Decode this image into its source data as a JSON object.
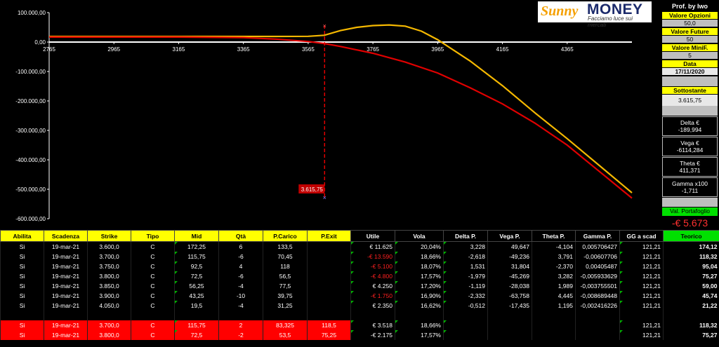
{
  "logo": {
    "brand_left": "Sunny",
    "brand_right": "MONEY",
    "tagline": "Facciamo luce sui mercati"
  },
  "sidebar": {
    "author": "Prof. by Iwo",
    "opzioni_label": "Valore Opzioni",
    "opzioni_value": "50,0",
    "future_label": "Valore Future",
    "future_value": "50",
    "minif_label": "Valore MiniF.",
    "minif_value": "5",
    "data_label": "Data",
    "data_value": "17/11/2020",
    "sottostante_label": "Sottostante",
    "sottostante_value": "3.615,75",
    "delta_label": "Delta €",
    "delta_value": "-189,994",
    "vega_label": "Vega €",
    "vega_value": "-6114,284",
    "theta_label": "Theta €",
    "theta_value": "411,371",
    "gamma_label": "Gamma x100",
    "gamma_value": "-1,711",
    "portafoglio_label": "Val. Portafoglio",
    "portafoglio_value": "-€ 5.673"
  },
  "colors": {
    "expiry_line": "#f5b800",
    "today_line": "#e00000",
    "marker": "#e00000",
    "zero_line": "#ffffff"
  },
  "chart_data": {
    "type": "line",
    "y_tick_labels": [
      "100.000,00",
      "0,00",
      "-100.000,00",
      "-200.000,00",
      "-300.000,00",
      "-400.000,00",
      "-500.000,00",
      "-600.000,00"
    ],
    "x_tick_labels": [
      "2765",
      "2965",
      "3165",
      "3365",
      "3565",
      "3765",
      "3965",
      "4165",
      "4365"
    ],
    "ylim": [
      -600000,
      100000
    ],
    "xlim": [
      2765,
      4565
    ],
    "x_ticks": [
      2765,
      2965,
      3165,
      3365,
      3565,
      3765,
      3965,
      4165,
      4365
    ],
    "y_ticks": [
      100000,
      0,
      -100000,
      -200000,
      -300000,
      -400000,
      -500000,
      -600000
    ],
    "marker_label": "3.615,75",
    "marker_x": 3615.75,
    "series": [
      {
        "color": "#f5b800",
        "x": [
          2765,
          3165,
          3465,
          3565,
          3615,
          3665,
          3715,
          3765,
          3815,
          3865,
          3915,
          3965,
          4065,
          4165,
          4265,
          4365,
          4465,
          4565
        ],
        "y": [
          19000,
          19000,
          19000,
          19500,
          23000,
          39000,
          50000,
          56000,
          58000,
          54000,
          37000,
          8000,
          -64000,
          -148000,
          -240000,
          -328000,
          -420000,
          -512000
        ]
      },
      {
        "color": "#e00000",
        "x": [
          2765,
          3165,
          3365,
          3465,
          3565,
          3615,
          3665,
          3765,
          3865,
          3965,
          4065,
          4165,
          4265,
          4365,
          4465,
          4565
        ],
        "y": [
          17000,
          17000,
          15000,
          10000,
          2000,
          -5000,
          -15000,
          -38000,
          -68000,
          -105000,
          -155000,
          -210000,
          -275000,
          -350000,
          -440000,
          -530000
        ]
      }
    ]
  },
  "table": {
    "headers": [
      "Abilita",
      "Scadenza",
      "Strike",
      "Tipo",
      "Mid",
      "Qtà",
      "P.Carico",
      "P.Exit",
      "Utile",
      "Vola",
      "Delta P.",
      "Vega P.",
      "Theta P.",
      "Gamma P.",
      "GG a scad",
      "Teorico"
    ],
    "rows": [
      [
        "Si",
        "19-mar-21",
        "3.600,0",
        "C",
        "172,25",
        "6",
        "133,5",
        "",
        "€ 11.625",
        "20,04%",
        "3,228",
        "49,647",
        "-4,104",
        "0,005706427",
        "121,21",
        "174,12"
      ],
      [
        "Si",
        "19-mar-21",
        "3.700,0",
        "C",
        "115,75",
        "-6",
        "70,45",
        "",
        "-€ 13.590",
        "18,66%",
        "-2,618",
        "-49,236",
        "3,791",
        "-0,00607706",
        "121,21",
        "118,32"
      ],
      [
        "Si",
        "19-mar-21",
        "3.750,0",
        "C",
        "92,5",
        "4",
        "118",
        "",
        "-€ 5.100",
        "18,07%",
        "1,531",
        "31,804",
        "-2,370",
        "0,00405487",
        "121,21",
        "95,04"
      ],
      [
        "Si",
        "19-mar-21",
        "3.800,0",
        "C",
        "72,5",
        "-6",
        "56,5",
        "",
        "-€ 4.800",
        "17,57%",
        "-1,979",
        "-45,269",
        "3,282",
        "-0,005933629",
        "121,21",
        "75,27"
      ],
      [
        "Si",
        "19-mar-21",
        "3.850,0",
        "C",
        "56,25",
        "-4",
        "77,5",
        "",
        "€ 4.250",
        "17,20%",
        "-1,119",
        "-28,038",
        "1,989",
        "-0,003755501",
        "121,21",
        "59,00"
      ],
      [
        "Si",
        "19-mar-21",
        "3.900,0",
        "C",
        "43,25",
        "-10",
        "39,75",
        "",
        "-€ 1.750",
        "16,90%",
        "-2,332",
        "-63,758",
        "4,445",
        "-0,008689448",
        "121,21",
        "45,74"
      ],
      [
        "Si",
        "19-mar-21",
        "4.050,0",
        "C",
        "19,5",
        "-4",
        "31,25",
        "",
        "€ 2.350",
        "16,62%",
        "-0,512",
        "-17,435",
        "1,195",
        "-0,002416226",
        "121,21",
        "21,22"
      ]
    ],
    "closed_rows": [
      [
        "Si",
        "19-mar-21",
        "3.700,0",
        "C",
        "115,75",
        "2",
        "83,325",
        "118,5",
        "€ 3.518",
        "18,66%",
        "",
        "",
        "",
        "",
        "121,21",
        "118,32"
      ],
      [
        "Si",
        "19-mar-21",
        "3.800,0",
        "C",
        "72,5",
        "-2",
        "53,5",
        "75,25",
        "-€ 2.175",
        "17,57%",
        "",
        "",
        "",
        "",
        "121,21",
        "75,27"
      ]
    ]
  }
}
